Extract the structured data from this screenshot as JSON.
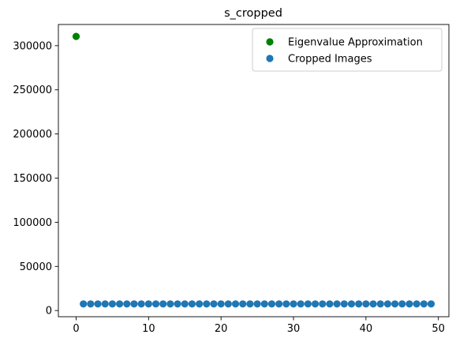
{
  "chart_data": {
    "type": "scatter",
    "title": "s_cropped",
    "xlabel": "",
    "ylabel": "",
    "xlim": [
      -2.45,
      51.45
    ],
    "ylim": [
      -7000,
      324000
    ],
    "xticks": [
      0,
      10,
      20,
      30,
      40,
      50
    ],
    "yticks": [
      0,
      50000,
      100000,
      150000,
      200000,
      250000,
      300000
    ],
    "grid": false,
    "legend_position": "top-right",
    "series": [
      {
        "name": "Eigenvalue Approximation",
        "color": "#008000",
        "x": [
          0
        ],
        "y": [
          310500
        ]
      },
      {
        "name": "Cropped Images",
        "color": "#1f77b4",
        "x": [
          1,
          2,
          3,
          4,
          5,
          6,
          7,
          8,
          9,
          10,
          11,
          12,
          13,
          14,
          15,
          16,
          17,
          18,
          19,
          20,
          21,
          22,
          23,
          24,
          25,
          26,
          27,
          28,
          29,
          30,
          31,
          32,
          33,
          34,
          35,
          36,
          37,
          38,
          39,
          40,
          41,
          42,
          43,
          44,
          45,
          46,
          47,
          48,
          49
        ],
        "y": [
          7500,
          7500,
          7500,
          7500,
          7500,
          7500,
          7500,
          7500,
          7500,
          7500,
          7500,
          7500,
          7500,
          7500,
          7500,
          7500,
          7500,
          7500,
          7500,
          7500,
          7500,
          7500,
          7500,
          7500,
          7500,
          7500,
          7500,
          7500,
          7500,
          7500,
          7500,
          7500,
          7500,
          7500,
          7500,
          7500,
          7500,
          7500,
          7500,
          7500,
          7500,
          7500,
          7500,
          7500,
          7500,
          7500,
          7500,
          7500,
          7500
        ]
      }
    ]
  }
}
